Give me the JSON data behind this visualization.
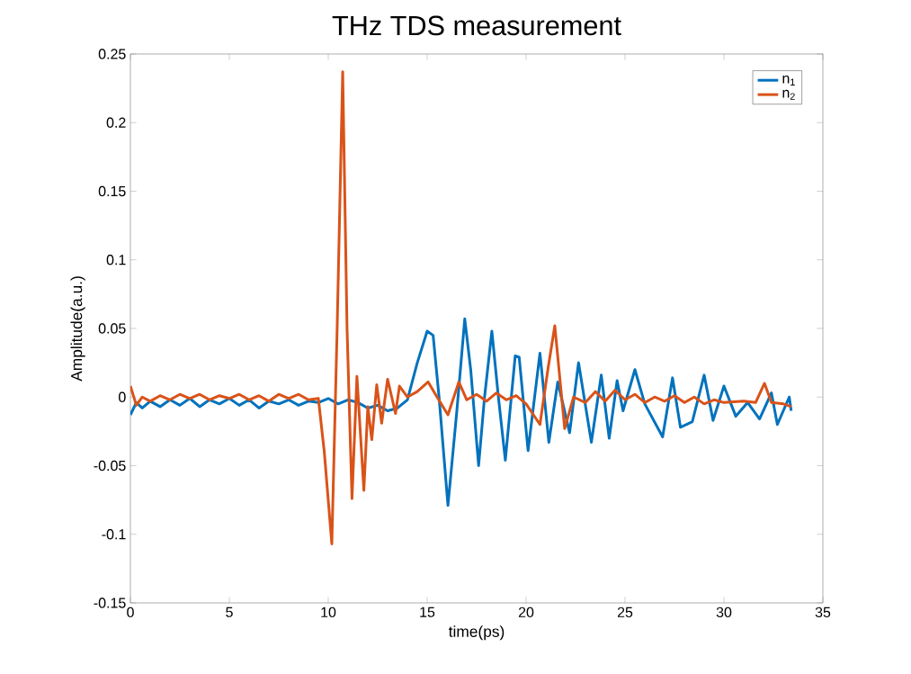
{
  "chart_data": {
    "type": "line",
    "title": "THz TDS measurement",
    "xlabel": "time(ps)",
    "ylabel": "Amplitude(a.u.)",
    "xlim": [
      0,
      35
    ],
    "ylim": [
      -0.15,
      0.25
    ],
    "xticks": [
      0,
      5,
      10,
      15,
      20,
      25,
      30,
      35
    ],
    "yticks": [
      -0.15,
      -0.1,
      -0.05,
      0,
      0.05,
      0.1,
      0.15,
      0.2,
      0.25
    ],
    "grid": false,
    "legend": "top right",
    "line_style": "solid",
    "marker": "none",
    "series": [
      {
        "name": "n$_{1}$",
        "color": "#0072bd",
        "x": [
          0,
          0.3,
          0.6,
          1,
          1.5,
          2,
          2.5,
          3,
          3.5,
          4,
          4.5,
          5,
          5.5,
          6,
          6.5,
          7,
          7.5,
          8,
          8.5,
          9,
          9.5,
          10,
          10.5,
          11,
          11.5,
          12,
          12.5,
          13,
          13.5,
          14,
          14.5,
          15,
          15.3,
          15.6,
          16.05,
          16.5,
          16.9,
          17.2,
          17.6,
          17.9,
          18.27,
          18.6,
          18.95,
          19.45,
          19.65,
          20.1,
          20.7,
          21.15,
          21.6,
          22.2,
          22.65,
          23.3,
          23.8,
          24.2,
          24.6,
          24.9,
          25.5,
          26,
          26.9,
          27.4,
          27.8,
          28.4,
          29,
          29.45,
          30,
          30.6,
          31.2,
          31.8,
          32.4,
          32.7,
          33.3,
          33.4
        ],
        "values": [
          -0.013,
          -0.004,
          -0.008,
          -0.003,
          -0.007,
          -0.002,
          -0.006,
          -0.001,
          -0.007,
          -0.002,
          -0.005,
          -0.001,
          -0.006,
          -0.002,
          -0.008,
          -0.003,
          -0.005,
          -0.002,
          -0.006,
          -0.003,
          -0.004,
          -0.001,
          -0.005,
          -0.002,
          -0.004,
          -0.008,
          -0.006,
          -0.01,
          -0.008,
          -0.002,
          0.025,
          0.048,
          0.045,
          0.0,
          -0.079,
          -0.01,
          0.057,
          0.02,
          -0.05,
          0.0,
          0.048,
          0.0,
          -0.046,
          0.03,
          0.029,
          -0.039,
          0.032,
          -0.033,
          0.011,
          -0.026,
          0.025,
          -0.033,
          0.016,
          -0.03,
          0.012,
          -0.01,
          0.02,
          -0.005,
          -0.029,
          0.014,
          -0.022,
          -0.018,
          0.016,
          -0.017,
          0.008,
          -0.014,
          -0.004,
          -0.016,
          0.003,
          -0.02,
          0.0,
          -0.01
        ]
      },
      {
        "name": "n$_{2}$",
        "color": "#d95319",
        "x": [
          0,
          0.3,
          0.6,
          1,
          1.5,
          2,
          2.5,
          3,
          3.5,
          4,
          4.5,
          5,
          5.5,
          6,
          6.5,
          7,
          7.5,
          8,
          8.5,
          9,
          9.5,
          9.8,
          10.18,
          10.45,
          10.73,
          10.95,
          11.2,
          11.45,
          11.8,
          12,
          12.2,
          12.45,
          12.7,
          13,
          13.4,
          13.6,
          14,
          14.5,
          15.05,
          15.5,
          16.05,
          16.6,
          17,
          17.5,
          18,
          18.5,
          19,
          19.5,
          20,
          20.7,
          21.1,
          21.45,
          21.95,
          22.4,
          23,
          23.5,
          24,
          24.5,
          25,
          25.5,
          26,
          26.5,
          27,
          27.5,
          28,
          28.5,
          29,
          29.5,
          30,
          31,
          31.6,
          32.05,
          32.4,
          33,
          33.4
        ],
        "values": [
          0.008,
          -0.006,
          0.0,
          -0.003,
          0.001,
          -0.002,
          0.002,
          -0.001,
          0.002,
          -0.002,
          0.001,
          -0.001,
          0.002,
          -0.002,
          0.001,
          -0.003,
          0.002,
          -0.001,
          0.002,
          -0.002,
          -0.001,
          -0.04,
          -0.107,
          0.05,
          0.237,
          0.05,
          -0.074,
          0.015,
          -0.068,
          -0.007,
          -0.031,
          0.009,
          -0.019,
          0.013,
          -0.012,
          0.008,
          0.0,
          0.004,
          0.011,
          0.0,
          -0.013,
          0.011,
          -0.002,
          0.002,
          -0.003,
          0.003,
          -0.002,
          0.001,
          -0.005,
          -0.02,
          0.02,
          0.052,
          -0.023,
          0.0,
          -0.004,
          0.004,
          -0.003,
          0.005,
          -0.002,
          0.002,
          -0.004,
          0.0,
          -0.003,
          0.001,
          -0.004,
          0.0,
          -0.005,
          -0.002,
          -0.004,
          -0.003,
          -0.004,
          0.01,
          -0.004,
          -0.005,
          -0.007
        ]
      }
    ]
  }
}
